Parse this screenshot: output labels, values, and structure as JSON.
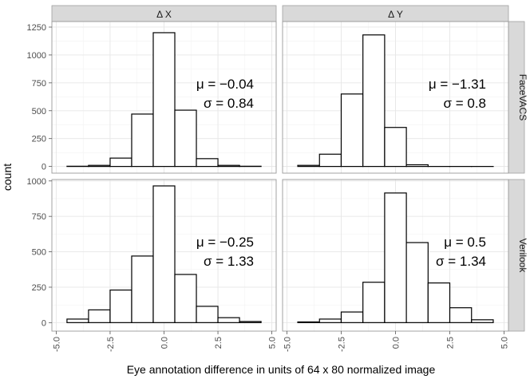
{
  "chart_data": {
    "type": "bar",
    "subtype": "faceted-histogram",
    "xlabel": "Eye annotation difference in units of 64 x 80 normalized image",
    "ylabel": "count",
    "xlim": [
      -5.2,
      5.2
    ],
    "x_ticks": [
      -5.0,
      -2.5,
      0.0,
      2.5,
      5.0
    ],
    "x_tick_labels": [
      "-5.0",
      "-2.5",
      "0.0",
      "2.5",
      "5.0"
    ],
    "bins": [
      [
        -4.5,
        -3.5
      ],
      [
        -3.5,
        -2.5
      ],
      [
        -2.5,
        -1.5
      ],
      [
        -1.5,
        -0.5
      ],
      [
        -0.5,
        0.5
      ],
      [
        0.5,
        1.5
      ],
      [
        1.5,
        2.5
      ],
      [
        2.5,
        3.5
      ],
      [
        3.5,
        4.5
      ]
    ],
    "columns": [
      "Δ X",
      "Δ Y"
    ],
    "rows": [
      "FaceVACS",
      "Verilook"
    ],
    "row_ylim": [
      [
        -60,
        1300
      ],
      [
        -60,
        1010
      ]
    ],
    "row_y_ticks": [
      [
        0,
        250,
        500,
        750,
        1000,
        1250
      ],
      [
        0,
        250,
        500,
        750,
        1000
      ]
    ],
    "panels": [
      {
        "column": "Δ X",
        "row": "FaceVACS",
        "values": [
          2,
          10,
          75,
          470,
          1200,
          505,
          70,
          10,
          2
        ],
        "annotation": [
          "μ = −0.04",
          "σ = 0.84"
        ]
      },
      {
        "column": "Δ Y",
        "row": "FaceVACS",
        "values": [
          10,
          110,
          650,
          1180,
          350,
          15,
          0,
          0,
          0
        ],
        "annotation": [
          "μ = −1.31",
          "σ = 0.8"
        ]
      },
      {
        "column": "Δ X",
        "row": "Verilook",
        "values": [
          25,
          90,
          230,
          470,
          965,
          340,
          115,
          35,
          8
        ],
        "annotation": [
          "μ = −0.25",
          "σ = 1.33"
        ]
      },
      {
        "column": "Δ Y",
        "row": "Verilook",
        "values": [
          5,
          25,
          75,
          285,
          915,
          565,
          280,
          105,
          20
        ],
        "annotation": [
          "μ = 0.5",
          "σ = 1.34"
        ]
      }
    ]
  }
}
